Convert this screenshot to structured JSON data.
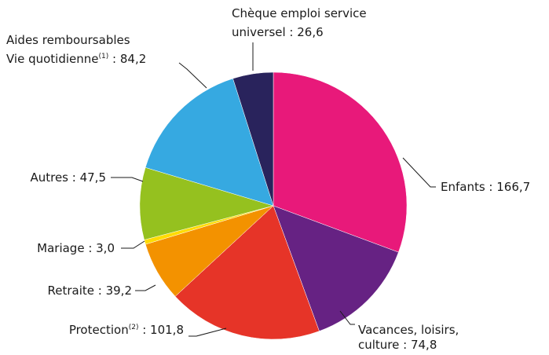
{
  "chart_data": {
    "type": "pie",
    "start_angle_deg": 0,
    "direction": "clockwise",
    "slices": [
      {
        "label": "Enfants",
        "value": 166.7,
        "value_text": "166,7",
        "color": "#e8197a"
      },
      {
        "label": "Vacances, loisirs, culture",
        "value": 74.8,
        "value_text": "74,8",
        "color": "#662283"
      },
      {
        "label": "Protection",
        "note": "(2)",
        "value": 101.8,
        "value_text": "101,8",
        "color": "#e63428"
      },
      {
        "label": "Retraite",
        "value": 39.2,
        "value_text": "39,2",
        "color": "#f39200"
      },
      {
        "label": "Mariage",
        "value": 3.0,
        "value_text": "3,0",
        "color": "#ffdc00"
      },
      {
        "label": "Autres",
        "value": 47.5,
        "value_text": "47,5",
        "color": "#95c11f"
      },
      {
        "label": "Aides remboursables Vie quotidienne",
        "note": "(1)",
        "value": 84.2,
        "value_text": "84,2",
        "color": "#36a9e1"
      },
      {
        "label": "Chèque emploi service universel",
        "value": 26.6,
        "value_text": "26,6",
        "color": "#29235c"
      }
    ]
  },
  "labels": {
    "enfants": "Enfants : 166,7",
    "vacances_line1": "Vacances, loisirs,",
    "vacances_line2": "culture : 74,8",
    "protection_main": "Protection",
    "protection_sup": "(2)",
    "protection_val": " : 101,8",
    "retraite": "Retraite : 39,2",
    "mariage": "Mariage : 3,0",
    "autres": "Autres : 47,5",
    "aides_line1": "Aides remboursables",
    "aides_line2_main": "Vie quotidienne",
    "aides_line2_sup": "(1)",
    "aides_line2_val": " : 84,2",
    "cesu_line1": "Chèque emploi service",
    "cesu_line2": "universel : 26,6"
  }
}
